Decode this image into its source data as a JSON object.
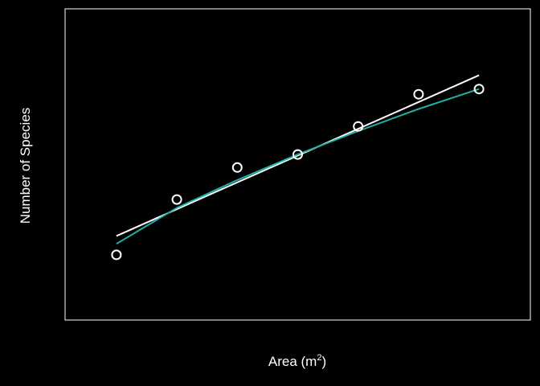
{
  "chart_data": {
    "type": "scatter",
    "title": "",
    "xlabel": {
      "text": "Area (m",
      "sup": "2",
      "suffix": ")"
    },
    "ylabel": "Number of Species",
    "x_ticks_shown": false,
    "y_ticks_shown": false,
    "grid": false,
    "legend": "none",
    "xlim": [
      0.15,
      7.85
    ],
    "ylim": [
      -0.265,
      1.0
    ],
    "points": {
      "x": [
        1,
        2,
        3,
        4,
        5,
        6,
        7
      ],
      "y": [
        0.0,
        0.225,
        0.355,
        0.408,
        0.522,
        0.653,
        0.674
      ]
    },
    "fits": [
      {
        "kind": "linear",
        "color": "#ffffff",
        "x": [
          1,
          7
        ],
        "y": [
          0.077,
          0.73
        ]
      },
      {
        "kind": "curve",
        "color": "#20b2aa",
        "x": [
          1,
          2,
          3,
          4,
          5,
          6,
          7
        ],
        "y": [
          0.045,
          0.191,
          0.304,
          0.408,
          0.503,
          0.593,
          0.674
        ]
      }
    ],
    "colors": {
      "background": "#000000",
      "foreground": "#ffffff",
      "curve": "#20b2aa"
    }
  }
}
